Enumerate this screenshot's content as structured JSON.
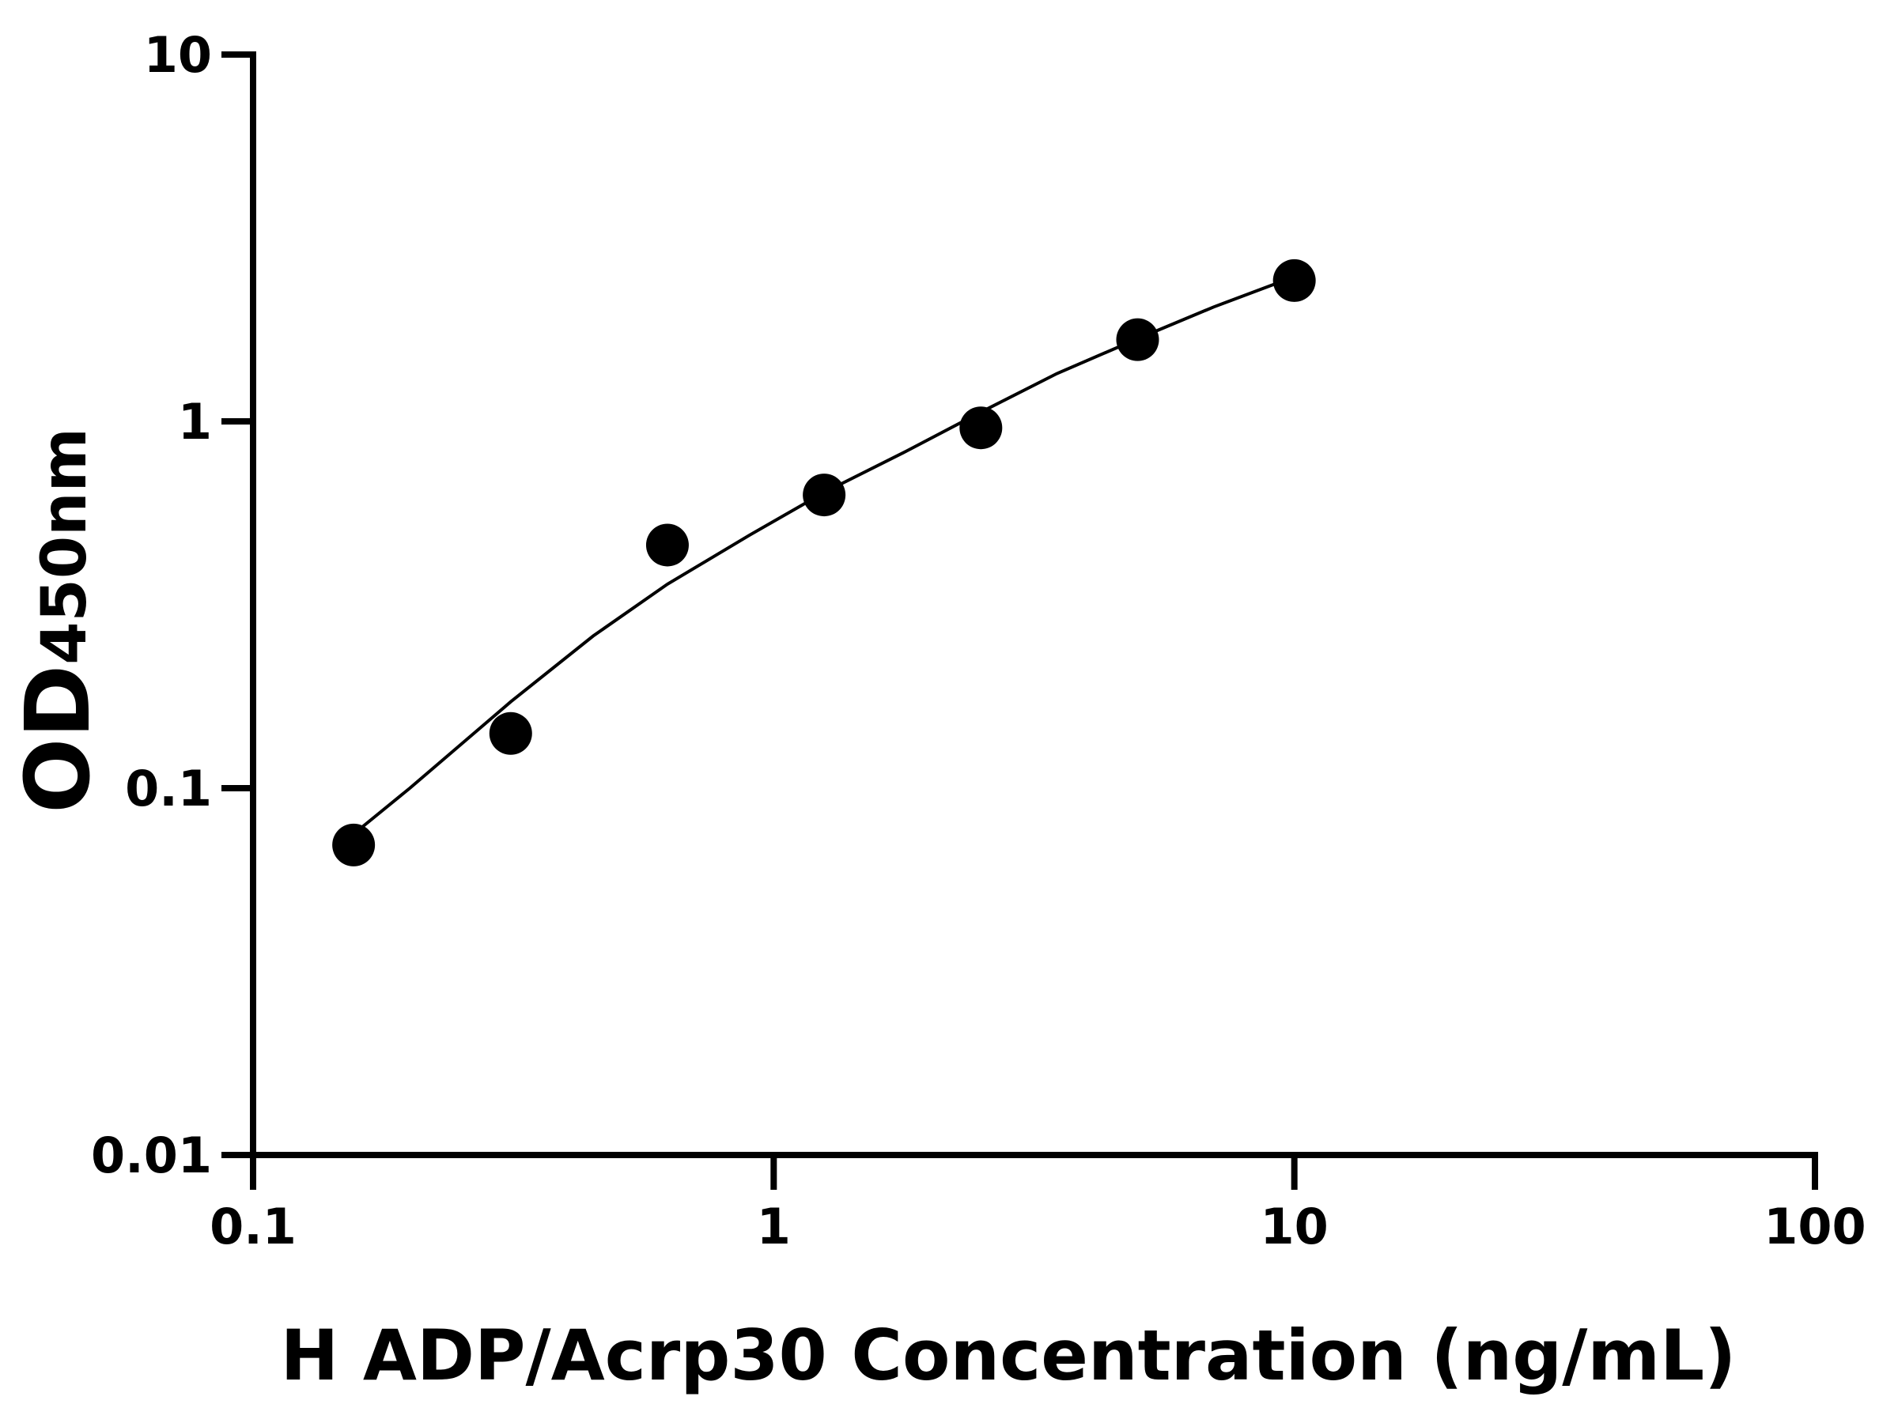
{
  "chart_data": {
    "type": "scatter",
    "x_label": "H ADP/Acrp30 Concentration (ng/mL)",
    "y_label": "OD",
    "y_label_sub": "450nm",
    "x": [
      0.156,
      0.3125,
      0.625,
      1.25,
      2.5,
      5,
      10
    ],
    "values": [
      0.07,
      0.141,
      0.46,
      0.63,
      0.96,
      1.67,
      2.42
    ],
    "color": "#000000",
    "curve": {
      "x": [
        0.156,
        0.2,
        0.3125,
        0.45,
        0.625,
        0.9,
        1.25,
        1.8,
        2.5,
        3.5,
        5,
        7,
        10
      ],
      "values": [
        0.075,
        0.1,
        0.172,
        0.26,
        0.36,
        0.49,
        0.64,
        0.83,
        1.06,
        1.35,
        1.68,
        2.05,
        2.48
      ]
    },
    "xscale": "log",
    "yscale": "log",
    "xlim": [
      0.1,
      100
    ],
    "ylim": [
      0.01,
      10
    ],
    "xticks": [
      0.1,
      1,
      10,
      100
    ],
    "yticks": [
      0.01,
      0.1,
      1,
      10
    ]
  }
}
